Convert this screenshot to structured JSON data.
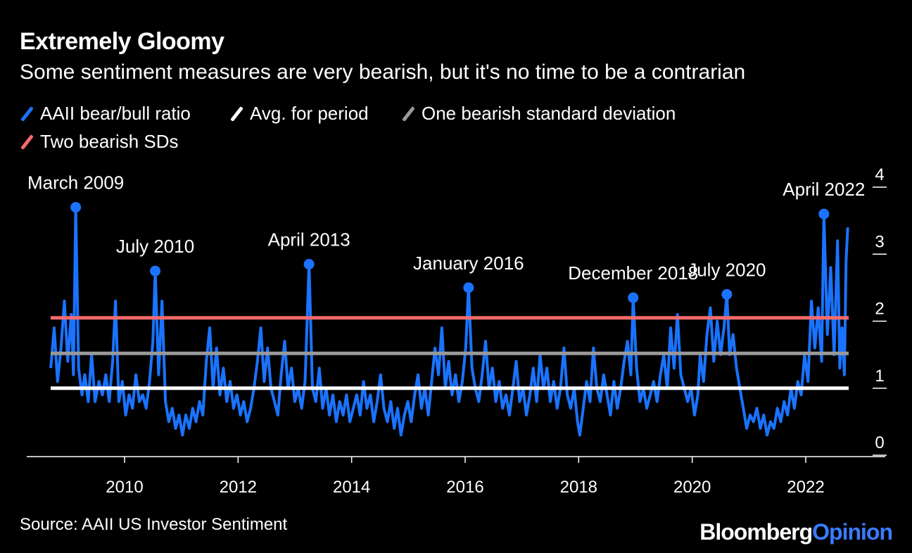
{
  "header": {
    "title": "Extremely Gloomy",
    "subtitle": "Some sentiment measures are very bearish, but it's no time to be a contrarian"
  },
  "legend": [
    {
      "label": "AAII bear/bull ratio",
      "color": "#1a73ff"
    },
    {
      "label": "Avg. for period",
      "color": "#ffffff"
    },
    {
      "label": "One bearish standard deviation",
      "color": "#999999"
    },
    {
      "label": "Two bearish SDs",
      "color": "#f26b6b"
    }
  ],
  "footer": {
    "source": "Source: AAII US Investor Sentiment",
    "brand_part1": "Bloomberg",
    "brand_part2": "Opinion"
  },
  "chart_data": {
    "type": "line",
    "title": "Extremely Gloomy",
    "subtitle": "Some sentiment measures are very bearish, but it's no time to be a contrarian",
    "x_range": [
      2008.7,
      2022.75
    ],
    "ylim": [
      0,
      4
    ],
    "y_ticks": [
      0,
      1,
      2,
      3,
      4
    ],
    "x_ticks": [
      2010,
      2012,
      2014,
      2016,
      2018,
      2020,
      2022
    ],
    "y_axis_position": "right",
    "grid": false,
    "reference_lines": [
      {
        "name": "Avg. for period",
        "value": 1.0,
        "color": "#ffffff"
      },
      {
        "name": "One bearish standard deviation",
        "value": 1.52,
        "color": "#999999"
      },
      {
        "name": "Two bearish SDs",
        "value": 2.05,
        "color": "#f26b6b"
      }
    ],
    "series": [
      {
        "name": "AAII bear/bull ratio",
        "color": "#1a73ff",
        "points": [
          [
            2008.7,
            1.3
          ],
          [
            2008.76,
            1.9
          ],
          [
            2008.82,
            1.1
          ],
          [
            2008.88,
            1.6
          ],
          [
            2008.94,
            2.3
          ],
          [
            2009.0,
            1.4
          ],
          [
            2009.06,
            2.1
          ],
          [
            2009.1,
            1.2
          ],
          [
            2009.14,
            3.7
          ],
          [
            2009.19,
            1.3
          ],
          [
            2009.25,
            0.9
          ],
          [
            2009.3,
            1.2
          ],
          [
            2009.36,
            0.8
          ],
          [
            2009.42,
            1.5
          ],
          [
            2009.48,
            0.8
          ],
          [
            2009.55,
            1.1
          ],
          [
            2009.61,
            0.9
          ],
          [
            2009.67,
            1.2
          ],
          [
            2009.73,
            0.8
          ],
          [
            2009.79,
            1.4
          ],
          [
            2009.84,
            2.3
          ],
          [
            2009.9,
            0.8
          ],
          [
            2009.96,
            1.1
          ],
          [
            2010.02,
            0.6
          ],
          [
            2010.08,
            0.9
          ],
          [
            2010.14,
            0.7
          ],
          [
            2010.2,
            1.2
          ],
          [
            2010.26,
            0.8
          ],
          [
            2010.32,
            0.9
          ],
          [
            2010.38,
            0.7
          ],
          [
            2010.44,
            1.1
          ],
          [
            2010.5,
            1.7
          ],
          [
            2010.54,
            2.75
          ],
          [
            2010.6,
            1.2
          ],
          [
            2010.66,
            2.3
          ],
          [
            2010.72,
            0.8
          ],
          [
            2010.78,
            0.5
          ],
          [
            2010.84,
            0.7
          ],
          [
            2010.9,
            0.4
          ],
          [
            2010.96,
            0.6
          ],
          [
            2011.02,
            0.3
          ],
          [
            2011.08,
            0.6
          ],
          [
            2011.14,
            0.4
          ],
          [
            2011.2,
            0.7
          ],
          [
            2011.26,
            0.5
          ],
          [
            2011.32,
            0.8
          ],
          [
            2011.38,
            0.6
          ],
          [
            2011.44,
            1.4
          ],
          [
            2011.5,
            1.9
          ],
          [
            2011.56,
            1.0
          ],
          [
            2011.62,
            1.6
          ],
          [
            2011.68,
            0.9
          ],
          [
            2011.74,
            1.3
          ],
          [
            2011.8,
            0.8
          ],
          [
            2011.86,
            1.1
          ],
          [
            2011.92,
            0.7
          ],
          [
            2011.98,
            0.9
          ],
          [
            2012.04,
            0.6
          ],
          [
            2012.1,
            0.8
          ],
          [
            2012.16,
            0.5
          ],
          [
            2012.22,
            0.7
          ],
          [
            2012.28,
            1.0
          ],
          [
            2012.34,
            1.4
          ],
          [
            2012.4,
            1.9
          ],
          [
            2012.46,
            1.1
          ],
          [
            2012.52,
            1.6
          ],
          [
            2012.58,
            1.0
          ],
          [
            2012.64,
            0.8
          ],
          [
            2012.7,
            0.6
          ],
          [
            2012.76,
            1.2
          ],
          [
            2012.82,
            1.7
          ],
          [
            2012.88,
            1.0
          ],
          [
            2012.94,
            1.3
          ],
          [
            2013.0,
            0.8
          ],
          [
            2013.06,
            1.0
          ],
          [
            2013.12,
            0.7
          ],
          [
            2013.18,
            1.1
          ],
          [
            2013.25,
            2.85
          ],
          [
            2013.31,
            1.0
          ],
          [
            2013.37,
            0.8
          ],
          [
            2013.43,
            1.3
          ],
          [
            2013.49,
            0.7
          ],
          [
            2013.55,
            1.0
          ],
          [
            2013.61,
            0.6
          ],
          [
            2013.67,
            0.9
          ],
          [
            2013.73,
            0.5
          ],
          [
            2013.79,
            0.8
          ],
          [
            2013.85,
            0.6
          ],
          [
            2013.91,
            0.9
          ],
          [
            2013.97,
            0.5
          ],
          [
            2014.03,
            0.7
          ],
          [
            2014.09,
            0.9
          ],
          [
            2014.15,
            0.6
          ],
          [
            2014.21,
            1.1
          ],
          [
            2014.27,
            0.7
          ],
          [
            2014.33,
            0.9
          ],
          [
            2014.39,
            0.5
          ],
          [
            2014.45,
            0.8
          ],
          [
            2014.51,
            1.2
          ],
          [
            2014.57,
            0.7
          ],
          [
            2014.63,
            0.5
          ],
          [
            2014.69,
            0.8
          ],
          [
            2014.75,
            0.4
          ],
          [
            2014.81,
            0.7
          ],
          [
            2014.87,
            0.3
          ],
          [
            2014.93,
            0.6
          ],
          [
            2014.99,
            0.8
          ],
          [
            2015.05,
            0.5
          ],
          [
            2015.11,
            0.9
          ],
          [
            2015.17,
            1.2
          ],
          [
            2015.23,
            0.7
          ],
          [
            2015.29,
            1.0
          ],
          [
            2015.35,
            0.6
          ],
          [
            2015.41,
            1.1
          ],
          [
            2015.47,
            1.6
          ],
          [
            2015.53,
            1.2
          ],
          [
            2015.59,
            1.9
          ],
          [
            2015.65,
            1.0
          ],
          [
            2015.71,
            1.4
          ],
          [
            2015.77,
            0.9
          ],
          [
            2015.83,
            1.2
          ],
          [
            2015.89,
            0.8
          ],
          [
            2015.95,
            1.1
          ],
          [
            2016.01,
            1.6
          ],
          [
            2016.06,
            2.5
          ],
          [
            2016.12,
            1.3
          ],
          [
            2016.18,
            1.0
          ],
          [
            2016.24,
            0.8
          ],
          [
            2016.3,
            1.2
          ],
          [
            2016.36,
            1.7
          ],
          [
            2016.42,
            1.0
          ],
          [
            2016.48,
            1.3
          ],
          [
            2016.54,
            0.8
          ],
          [
            2016.6,
            1.1
          ],
          [
            2016.66,
            0.7
          ],
          [
            2016.72,
            0.9
          ],
          [
            2016.78,
            0.6
          ],
          [
            2016.84,
            1.0
          ],
          [
            2016.9,
            1.4
          ],
          [
            2016.96,
            0.8
          ],
          [
            2017.02,
            1.0
          ],
          [
            2017.08,
            0.6
          ],
          [
            2017.14,
            0.9
          ],
          [
            2017.2,
            1.3
          ],
          [
            2017.26,
            0.8
          ],
          [
            2017.32,
            1.5
          ],
          [
            2017.38,
            1.0
          ],
          [
            2017.44,
            1.3
          ],
          [
            2017.5,
            0.8
          ],
          [
            2017.56,
            1.1
          ],
          [
            2017.62,
            0.7
          ],
          [
            2017.68,
            1.0
          ],
          [
            2017.74,
            1.6
          ],
          [
            2017.8,
            0.9
          ],
          [
            2017.86,
            0.7
          ],
          [
            2017.92,
            1.0
          ],
          [
            2017.98,
            0.5
          ],
          [
            2018.02,
            0.3
          ],
          [
            2018.08,
            0.7
          ],
          [
            2018.14,
            1.1
          ],
          [
            2018.2,
            0.8
          ],
          [
            2018.26,
            1.6
          ],
          [
            2018.32,
            1.0
          ],
          [
            2018.38,
            0.8
          ],
          [
            2018.44,
            1.2
          ],
          [
            2018.5,
            0.9
          ],
          [
            2018.56,
            0.6
          ],
          [
            2018.62,
            1.1
          ],
          [
            2018.68,
            0.7
          ],
          [
            2018.74,
            1.0
          ],
          [
            2018.8,
            1.4
          ],
          [
            2018.86,
            1.7
          ],
          [
            2018.92,
            1.2
          ],
          [
            2018.96,
            2.35
          ],
          [
            2019.02,
            1.3
          ],
          [
            2019.08,
            0.8
          ],
          [
            2019.14,
            1.0
          ],
          [
            2019.2,
            0.7
          ],
          [
            2019.26,
            0.9
          ],
          [
            2019.32,
            1.1
          ],
          [
            2019.38,
            0.8
          ],
          [
            2019.44,
            1.2
          ],
          [
            2019.5,
            1.5
          ],
          [
            2019.56,
            1.0
          ],
          [
            2019.62,
            1.9
          ],
          [
            2019.68,
            1.3
          ],
          [
            2019.74,
            2.1
          ],
          [
            2019.8,
            1.2
          ],
          [
            2019.86,
            1.0
          ],
          [
            2019.92,
            0.8
          ],
          [
            2019.98,
            1.0
          ],
          [
            2020.04,
            0.6
          ],
          [
            2020.1,
            0.9
          ],
          [
            2020.14,
            1.5
          ],
          [
            2020.2,
            1.1
          ],
          [
            2020.26,
            1.8
          ],
          [
            2020.32,
            2.2
          ],
          [
            2020.38,
            1.4
          ],
          [
            2020.44,
            2.0
          ],
          [
            2020.5,
            1.5
          ],
          [
            2020.56,
            1.9
          ],
          [
            2020.61,
            2.4
          ],
          [
            2020.66,
            1.5
          ],
          [
            2020.72,
            1.8
          ],
          [
            2020.78,
            1.3
          ],
          [
            2020.84,
            1.0
          ],
          [
            2020.9,
            0.7
          ],
          [
            2020.96,
            0.4
          ],
          [
            2021.02,
            0.6
          ],
          [
            2021.08,
            0.5
          ],
          [
            2021.14,
            0.7
          ],
          [
            2021.2,
            0.4
          ],
          [
            2021.26,
            0.6
          ],
          [
            2021.32,
            0.3
          ],
          [
            2021.38,
            0.5
          ],
          [
            2021.44,
            0.4
          ],
          [
            2021.5,
            0.7
          ],
          [
            2021.56,
            0.5
          ],
          [
            2021.62,
            0.8
          ],
          [
            2021.68,
            0.6
          ],
          [
            2021.74,
            1.0
          ],
          [
            2021.8,
            0.7
          ],
          [
            2021.86,
            1.1
          ],
          [
            2021.92,
            0.9
          ],
          [
            2021.98,
            1.5
          ],
          [
            2022.04,
            1.1
          ],
          [
            2022.1,
            2.3
          ],
          [
            2022.16,
            1.6
          ],
          [
            2022.22,
            2.2
          ],
          [
            2022.28,
            1.4
          ],
          [
            2022.32,
            3.6
          ],
          [
            2022.38,
            1.8
          ],
          [
            2022.44,
            2.8
          ],
          [
            2022.5,
            1.5
          ],
          [
            2022.56,
            3.2
          ],
          [
            2022.6,
            1.3
          ],
          [
            2022.64,
            1.9
          ],
          [
            2022.68,
            1.2
          ],
          [
            2022.71,
            2.9
          ],
          [
            2022.74,
            3.4
          ]
        ]
      }
    ],
    "annotations": [
      {
        "label": "March 2009",
        "x": 2009.14,
        "y": 3.7
      },
      {
        "label": "July 2010",
        "x": 2010.54,
        "y": 2.75
      },
      {
        "label": "April 2013",
        "x": 2013.25,
        "y": 2.85
      },
      {
        "label": "January 2016",
        "x": 2016.06,
        "y": 2.5
      },
      {
        "label": "December 2018",
        "x": 2018.96,
        "y": 2.35
      },
      {
        "label": "July 2020",
        "x": 2020.61,
        "y": 2.4
      },
      {
        "label": "April 2022",
        "x": 2022.32,
        "y": 3.6
      }
    ]
  }
}
